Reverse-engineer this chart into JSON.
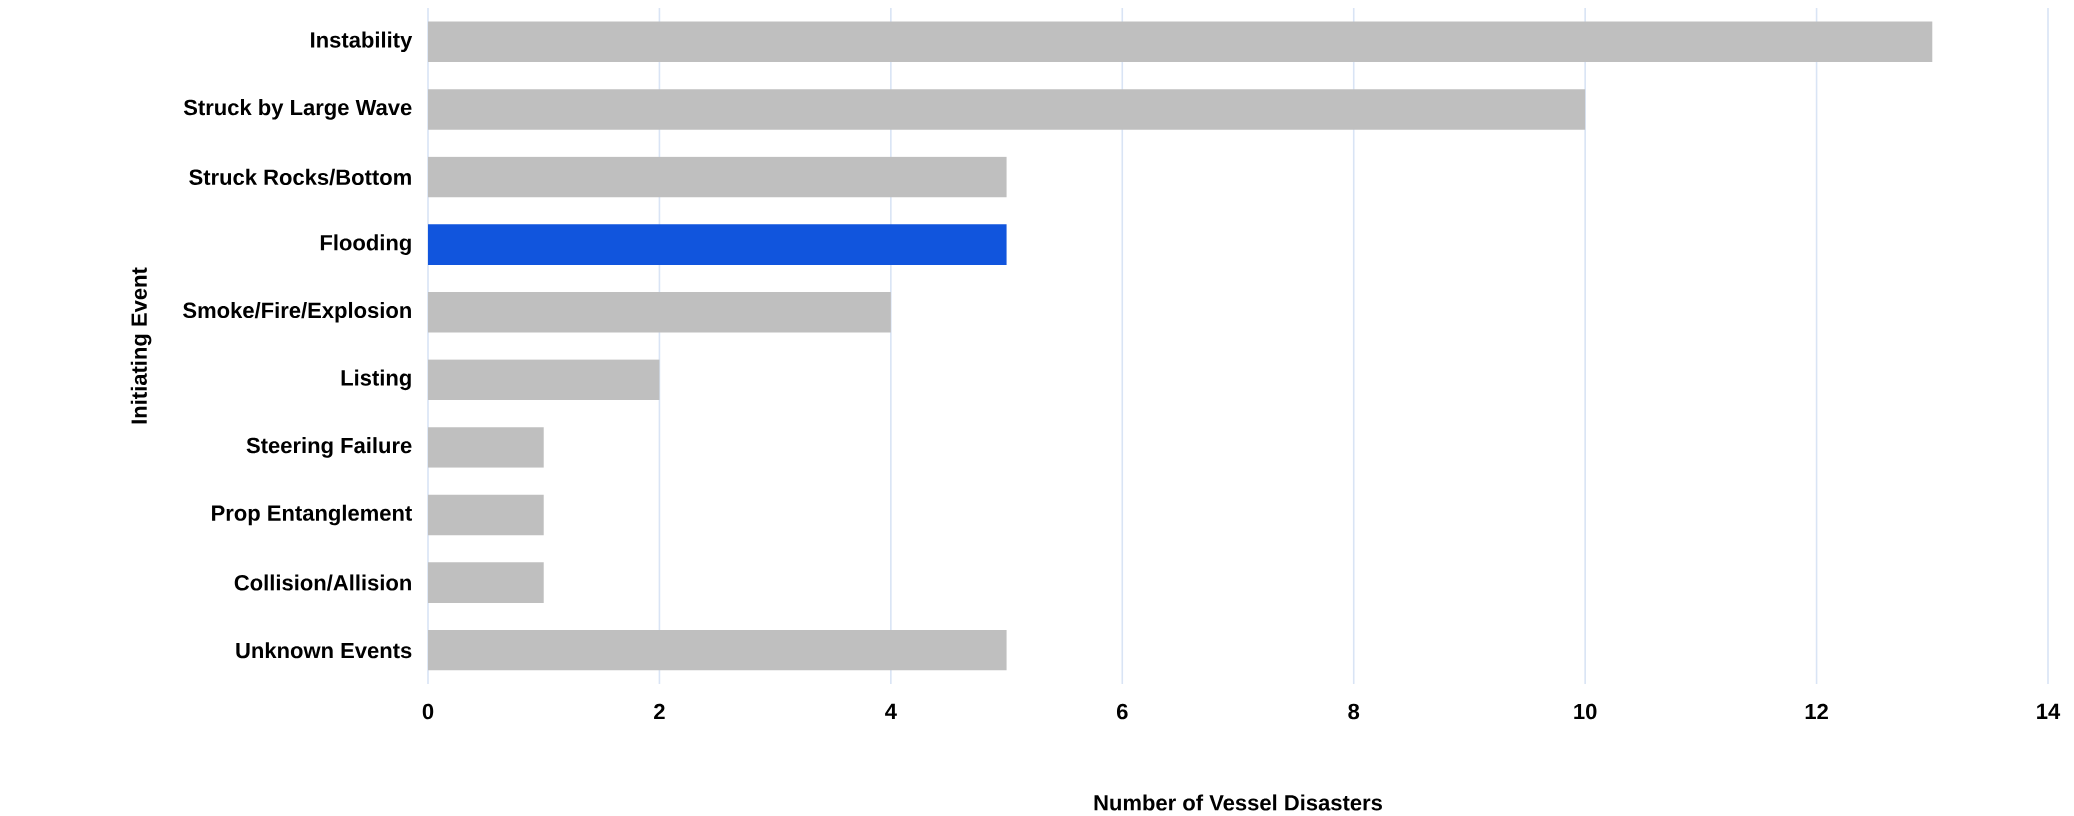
{
  "chart_data": {
    "type": "bar",
    "orientation": "horizontal",
    "categories": [
      "Instability",
      "Struck by Large Wave",
      "Struck Rocks/Bottom",
      "Flooding",
      "Smoke/Fire/Explosion",
      "Listing",
      "Steering Failure",
      "Prop Entanglement",
      "Collision/Allision",
      "Unknown Events"
    ],
    "values": [
      13,
      10,
      5,
      5,
      4,
      2,
      1,
      1,
      1,
      5
    ],
    "colors": [
      "#bfbfbf",
      "#bfbfbf",
      "#bfbfbf",
      "#1155dd",
      "#bfbfbf",
      "#bfbfbf",
      "#bfbfbf",
      "#bfbfbf",
      "#bfbfbf",
      "#bfbfbf"
    ],
    "xlim": [
      0,
      14
    ],
    "xticks": [
      0,
      2,
      4,
      6,
      8,
      10,
      12,
      14
    ],
    "grid": "x",
    "xlabel": "Number of Vessel Disasters",
    "ylabel": "Initiating Event"
  }
}
